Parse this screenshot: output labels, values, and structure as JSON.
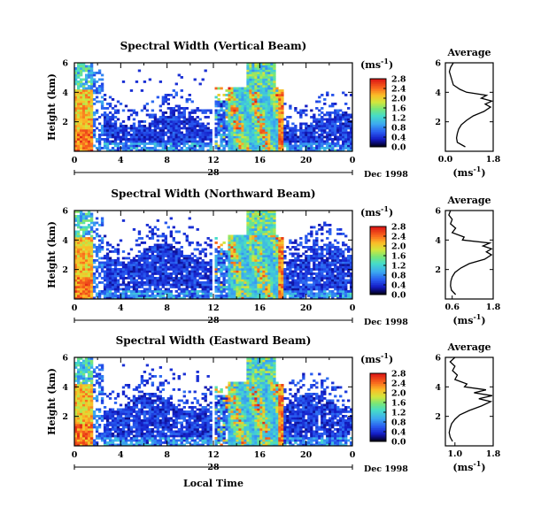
{
  "chart_data": [
    {
      "type": "heatmap",
      "title": "Spectral Width (Vertical Beam)",
      "ylabel": "Height (km)",
      "yticks": [
        "2",
        "4",
        "6"
      ],
      "ylim": [
        0,
        6
      ],
      "xticks": [
        "0",
        "4",
        "8",
        "12",
        "16",
        "20",
        "0"
      ],
      "xlim": [
        0,
        24
      ],
      "date_marker": "28",
      "date_label": "Dec 1998",
      "colorbar": {
        "unit": "(ms",
        "unit_exp": "-1",
        "unit_close": ")",
        "ticks": [
          "0.0",
          "0.4",
          "0.8",
          "1.2",
          "1.6",
          "2.0",
          "2.4",
          "2.8"
        ],
        "range": [
          0,
          2.8
        ]
      },
      "profile": {
        "title": "Average",
        "xticks": [
          "0.0",
          "1.8"
        ],
        "xlim": [
          0,
          1.8
        ],
        "yticks": [
          "2",
          "4",
          "6"
        ],
        "unit": "(ms",
        "unit_exp": "-1",
        "unit_close": ")",
        "height": [
          0.3,
          0.6,
          0.9,
          1.2,
          1.5,
          1.8,
          2.1,
          2.4,
          2.7,
          3.0,
          3.2,
          3.4,
          3.6,
          3.8,
          4.0,
          4.2,
          4.5,
          4.8,
          5.1,
          5.4,
          5.7,
          6.0
        ],
        "value": [
          0.75,
          0.45,
          0.42,
          0.45,
          0.5,
          0.6,
          0.8,
          1.05,
          1.45,
          1.7,
          1.5,
          1.75,
          1.35,
          1.55,
          0.8,
          0.55,
          0.3,
          0.25,
          0.2,
          0.15,
          0.2,
          0.3
        ]
      }
    },
    {
      "type": "heatmap",
      "title": "Spectral Width (Northward Beam)",
      "ylabel": "Height (km)",
      "yticks": [
        "2",
        "4",
        "6"
      ],
      "ylim": [
        0,
        6
      ],
      "xticks": [
        "0",
        "4",
        "8",
        "12",
        "16",
        "20",
        "0"
      ],
      "xlim": [
        0,
        24
      ],
      "date_marker": "28",
      "date_label": "Dec 1998",
      "colorbar": {
        "unit": "(ms",
        "unit_exp": "-1",
        "unit_close": ")",
        "ticks": [
          "0.0",
          "0.4",
          "0.8",
          "1.2",
          "1.6",
          "2.0",
          "2.4",
          "2.8"
        ],
        "range": [
          0,
          2.8
        ]
      },
      "profile": {
        "title": "Average",
        "xticks": [
          "0.6",
          "1.8"
        ],
        "xlim": [
          0.4,
          1.8
        ],
        "yticks": [
          "2",
          "4",
          "6"
        ],
        "unit": "(ms",
        "unit_exp": "-1",
        "unit_close": ")",
        "height": [
          0.3,
          0.6,
          0.9,
          1.2,
          1.5,
          1.8,
          2.1,
          2.4,
          2.7,
          3.0,
          3.2,
          3.4,
          3.6,
          3.8,
          4.0,
          4.2,
          4.5,
          4.8,
          5.1,
          5.4,
          5.7,
          6.0
        ],
        "value": [
          0.7,
          0.58,
          0.55,
          0.56,
          0.6,
          0.68,
          0.85,
          1.1,
          1.55,
          1.75,
          1.6,
          1.75,
          1.5,
          1.7,
          0.9,
          0.95,
          0.6,
          0.7,
          0.55,
          0.6,
          0.5,
          0.55
        ]
      }
    },
    {
      "type": "heatmap",
      "title": "Spectral Width (Eastward Beam)",
      "ylabel": "Height (km)",
      "yticks": [
        "2",
        "4",
        "6"
      ],
      "ylim": [
        0,
        6
      ],
      "xticks": [
        "0",
        "4",
        "8",
        "12",
        "16",
        "20",
        "0"
      ],
      "xlim": [
        0,
        24
      ],
      "date_marker": "28",
      "date_label": "Dec 1998",
      "xlabel": "Local Time",
      "colorbar": {
        "unit": "(ms",
        "unit_exp": "-1",
        "unit_close": ")",
        "ticks": [
          "0.0",
          "0.4",
          "0.8",
          "1.2",
          "1.6",
          "2.0",
          "2.4",
          "2.8"
        ],
        "range": [
          0,
          2.8
        ]
      },
      "profile": {
        "title": "Average",
        "xticks": [
          "1.0",
          "1.8"
        ],
        "xlim": [
          0.8,
          1.8
        ],
        "yticks": [
          "2",
          "4",
          "6"
        ],
        "unit": "(ms",
        "unit_exp": "-1",
        "unit_close": ")",
        "height": [
          0.3,
          0.6,
          0.9,
          1.2,
          1.5,
          1.8,
          2.1,
          2.4,
          2.7,
          3.0,
          3.2,
          3.4,
          3.6,
          3.8,
          4.0,
          4.2,
          4.5,
          4.8,
          5.1,
          5.4,
          5.7,
          6.0
        ],
        "value": [
          0.95,
          0.9,
          0.88,
          0.9,
          0.93,
          1.0,
          1.1,
          1.3,
          1.55,
          1.75,
          1.5,
          1.78,
          1.4,
          1.65,
          1.2,
          1.25,
          1.0,
          1.05,
          0.95,
          1.0,
          0.9,
          1.0
        ]
      }
    }
  ]
}
